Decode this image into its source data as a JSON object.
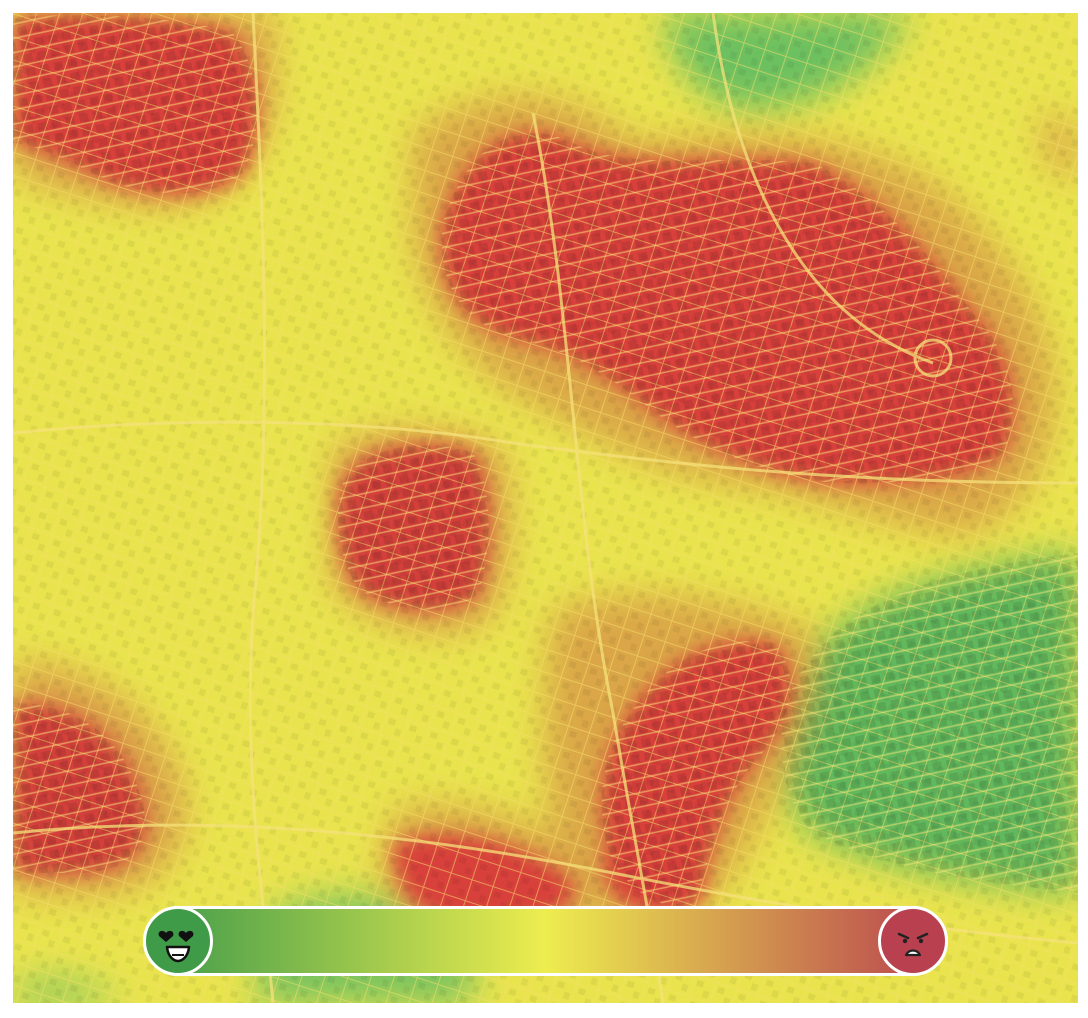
{
  "map": {
    "colors": {
      "base_yellow": "#e9e44e",
      "red": "#d9463a",
      "orange": "#d9a046",
      "green": "#6cc060",
      "street_line": "#f4d96a",
      "building_dark": "#b33a2e"
    }
  },
  "legend": {
    "gradient_stops": [
      "#3d9a4a",
      "#eded4f",
      "#b8404f"
    ],
    "low_icon": "heart-eyes-face-icon",
    "high_icon": "angry-face-icon",
    "low_color": "#3f9b47",
    "high_color": "#b8404f"
  }
}
